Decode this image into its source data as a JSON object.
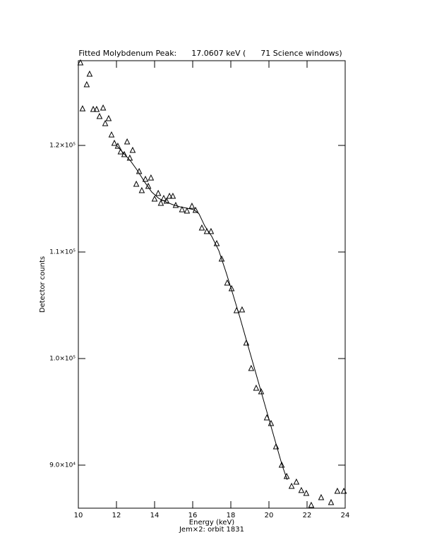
{
  "chart_data": {
    "type": "scatter",
    "title": "Fitted Molybdenum Peak:      17.0607 keV (      71 Science windows)",
    "xlabel": "Energy (keV)",
    "ylabel": "Detector counts",
    "caption": "Jem×2: orbit 1831",
    "color": "#000000",
    "points": {
      "x": [
        10.11,
        10.22,
        10.44,
        10.59,
        10.78,
        10.96,
        11.11,
        11.3,
        11.41,
        11.59,
        11.74,
        11.89,
        12.07,
        12.22,
        12.41,
        12.56,
        12.7,
        12.85,
        13.04,
        13.19,
        13.33,
        13.52,
        13.67,
        13.81,
        14.0,
        14.19,
        14.33,
        14.48,
        14.63,
        14.78,
        14.96,
        15.11,
        15.44,
        15.7,
        15.96,
        16.15,
        16.48,
        16.74,
        16.96,
        17.26,
        17.52,
        17.81,
        18.04,
        18.3,
        18.59,
        18.81,
        19.07,
        19.33,
        19.59,
        19.89,
        20.11,
        20.37,
        20.67,
        20.93,
        21.19,
        21.44,
        21.7,
        21.96,
        22.22,
        22.74,
        23.26,
        23.59,
        23.93
      ],
      "y": [
        127750,
        123440,
        125700,
        126690,
        123380,
        123380,
        122720,
        123510,
        122050,
        122520,
        120990,
        120200,
        119930,
        119400,
        119140,
        120330,
        118810,
        119540,
        116360,
        117550,
        115760,
        116820,
        116160,
        116950,
        114970,
        115500,
        114570,
        115030,
        114770,
        115230,
        115230,
        114370,
        113970,
        113840,
        114300,
        113910,
        112250,
        111920,
        111920,
        110790,
        109340,
        107090,
        106560,
        104500,
        104570,
        101460,
        99070,
        97220,
        96890,
        94440,
        93910,
        91720,
        90000,
        88940,
        88010,
        88410,
        87620,
        87350,
        86230,
        86950,
        86490,
        87550,
        87550
      ]
    },
    "fit": {
      "x": [
        12.04,
        12.37,
        12.74,
        13.11,
        13.48,
        13.85,
        14.22,
        14.59,
        14.96,
        15.33,
        15.7,
        16.07,
        16.33,
        16.63,
        17.0,
        17.37,
        17.74,
        18.11,
        18.48,
        18.85,
        19.22,
        19.59,
        19.96,
        20.33,
        20.7,
        20.96
      ],
      "y": [
        119930,
        119270,
        118540,
        117620,
        116560,
        115630,
        115030,
        114700,
        114440,
        114240,
        114110,
        113970,
        113580,
        112450,
        111460,
        110130,
        108150,
        106030,
        103840,
        101520,
        99210,
        96890,
        94570,
        92250,
        89940,
        88620
      ]
    },
    "xlim": [
      10,
      24
    ],
    "xticks": [
      10,
      12,
      14,
      16,
      18,
      20,
      22,
      24
    ],
    "ylim": [
      85960,
      127950
    ],
    "yticks": [
      {
        "value": 90000,
        "label": "9.0×10⁴"
      },
      {
        "value": 100000,
        "label": "1.0×10⁵"
      },
      {
        "value": 110000,
        "label": "1.1×10⁵"
      },
      {
        "value": 120000,
        "label": "1.2×10⁵"
      }
    ]
  }
}
